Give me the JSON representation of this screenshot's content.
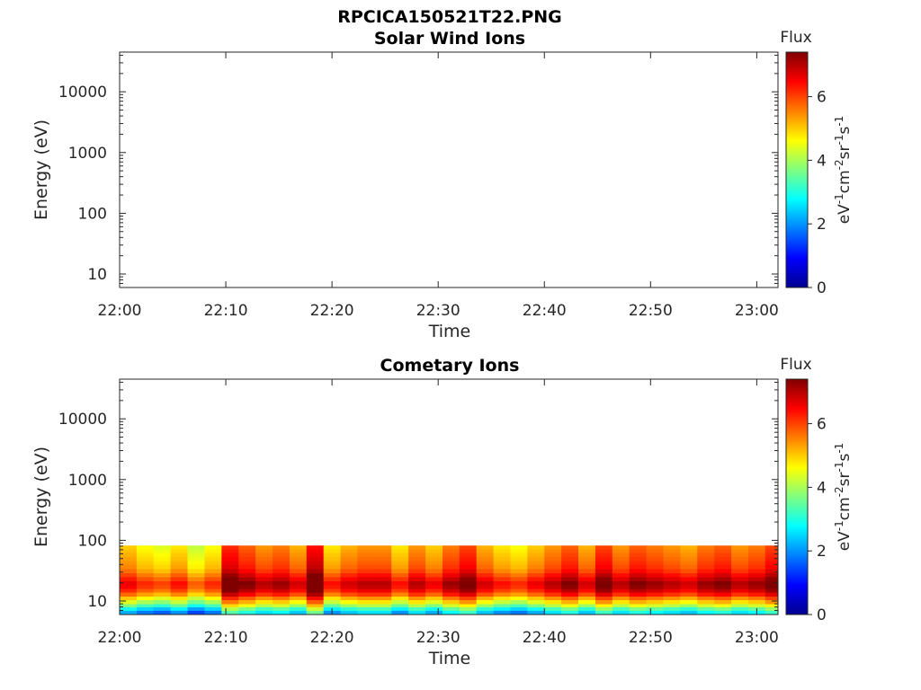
{
  "figure_title": "RPCICA150521T22.PNG",
  "colorbar": {
    "title": "Flux",
    "units_parts": [
      "eV",
      "-1",
      "cm",
      "-2",
      "sr",
      "-1",
      "s",
      "-1"
    ],
    "range": [
      0,
      7.4
    ],
    "ticks": [
      "0",
      "2",
      "4",
      "6"
    ],
    "colormap": "jet"
  },
  "chart_data": [
    {
      "type": "heatmap",
      "title": "Solar Wind Ions",
      "xlabel": "Time",
      "ylabel": "Energy (eV)",
      "y_scale": "log",
      "ylim": [
        6,
        45000
      ],
      "y_ticks": [
        "10",
        "100",
        "1000",
        "10000"
      ],
      "x_ticks": [
        "22:00",
        "22:10",
        "22:20",
        "22:30",
        "22:40",
        "22:50",
        "23:00"
      ],
      "xlim_minutes": [
        0,
        62
      ],
      "values": []
    },
    {
      "type": "heatmap",
      "title": "Cometary Ions",
      "xlabel": "Time",
      "ylabel": "Energy (eV)",
      "y_scale": "log",
      "ylim": [
        6,
        45000
      ],
      "y_ticks": [
        "10",
        "100",
        "1000",
        "10000"
      ],
      "x_ticks": [
        "22:00",
        "22:10",
        "22:20",
        "22:30",
        "22:40",
        "22:50",
        "23:00"
      ],
      "xlim_minutes": [
        0,
        62
      ],
      "energy_range_eV": [
        6,
        82
      ],
      "energy_bins_eV": [
        6,
        7,
        8,
        9,
        10.5,
        12,
        14,
        16,
        18.5,
        21.5,
        25,
        29,
        34,
        40,
        46,
        54,
        63,
        72,
        82
      ],
      "time_bins_minutes": [
        0,
        1.6,
        3.2,
        4.8,
        6.4,
        8.0,
        9.6,
        11.2,
        12.8,
        14.4,
        16.0,
        17.6,
        19.2,
        20.8,
        22.4,
        24.0,
        25.6,
        27.2,
        28.8,
        30.4,
        32.0,
        33.6,
        35.2,
        36.8,
        38.4,
        40.0,
        41.6,
        43.2,
        44.8,
        46.4,
        48.0,
        49.6,
        51.2,
        52.8,
        54.4,
        56.0,
        57.6,
        59.2,
        60.8,
        62.0
      ],
      "flux_per_column": [
        5.4,
        5.0,
        4.8,
        5.2,
        4.6,
        5.0,
        6.6,
        6.2,
        5.8,
        6.0,
        5.6,
        6.8,
        5.2,
        5.6,
        5.8,
        5.8,
        5.2,
        5.8,
        5.4,
        6.0,
        6.4,
        5.6,
        5.2,
        5.0,
        5.4,
        5.8,
        6.2,
        5.6,
        6.4,
        5.8,
        6.2,
        6.0,
        5.8,
        5.6,
        6.0,
        6.2,
        5.8,
        6.0,
        6.4
      ],
      "flux_profile_lowest_to_highest_bin": [
        2.6,
        3.3,
        4.1,
        4.8,
        5.4,
        6.1,
        6.6,
        6.9,
        7.0,
        6.7,
        6.4,
        6.1,
        5.9,
        5.8,
        5.7,
        5.6,
        5.5,
        5.4
      ]
    }
  ]
}
